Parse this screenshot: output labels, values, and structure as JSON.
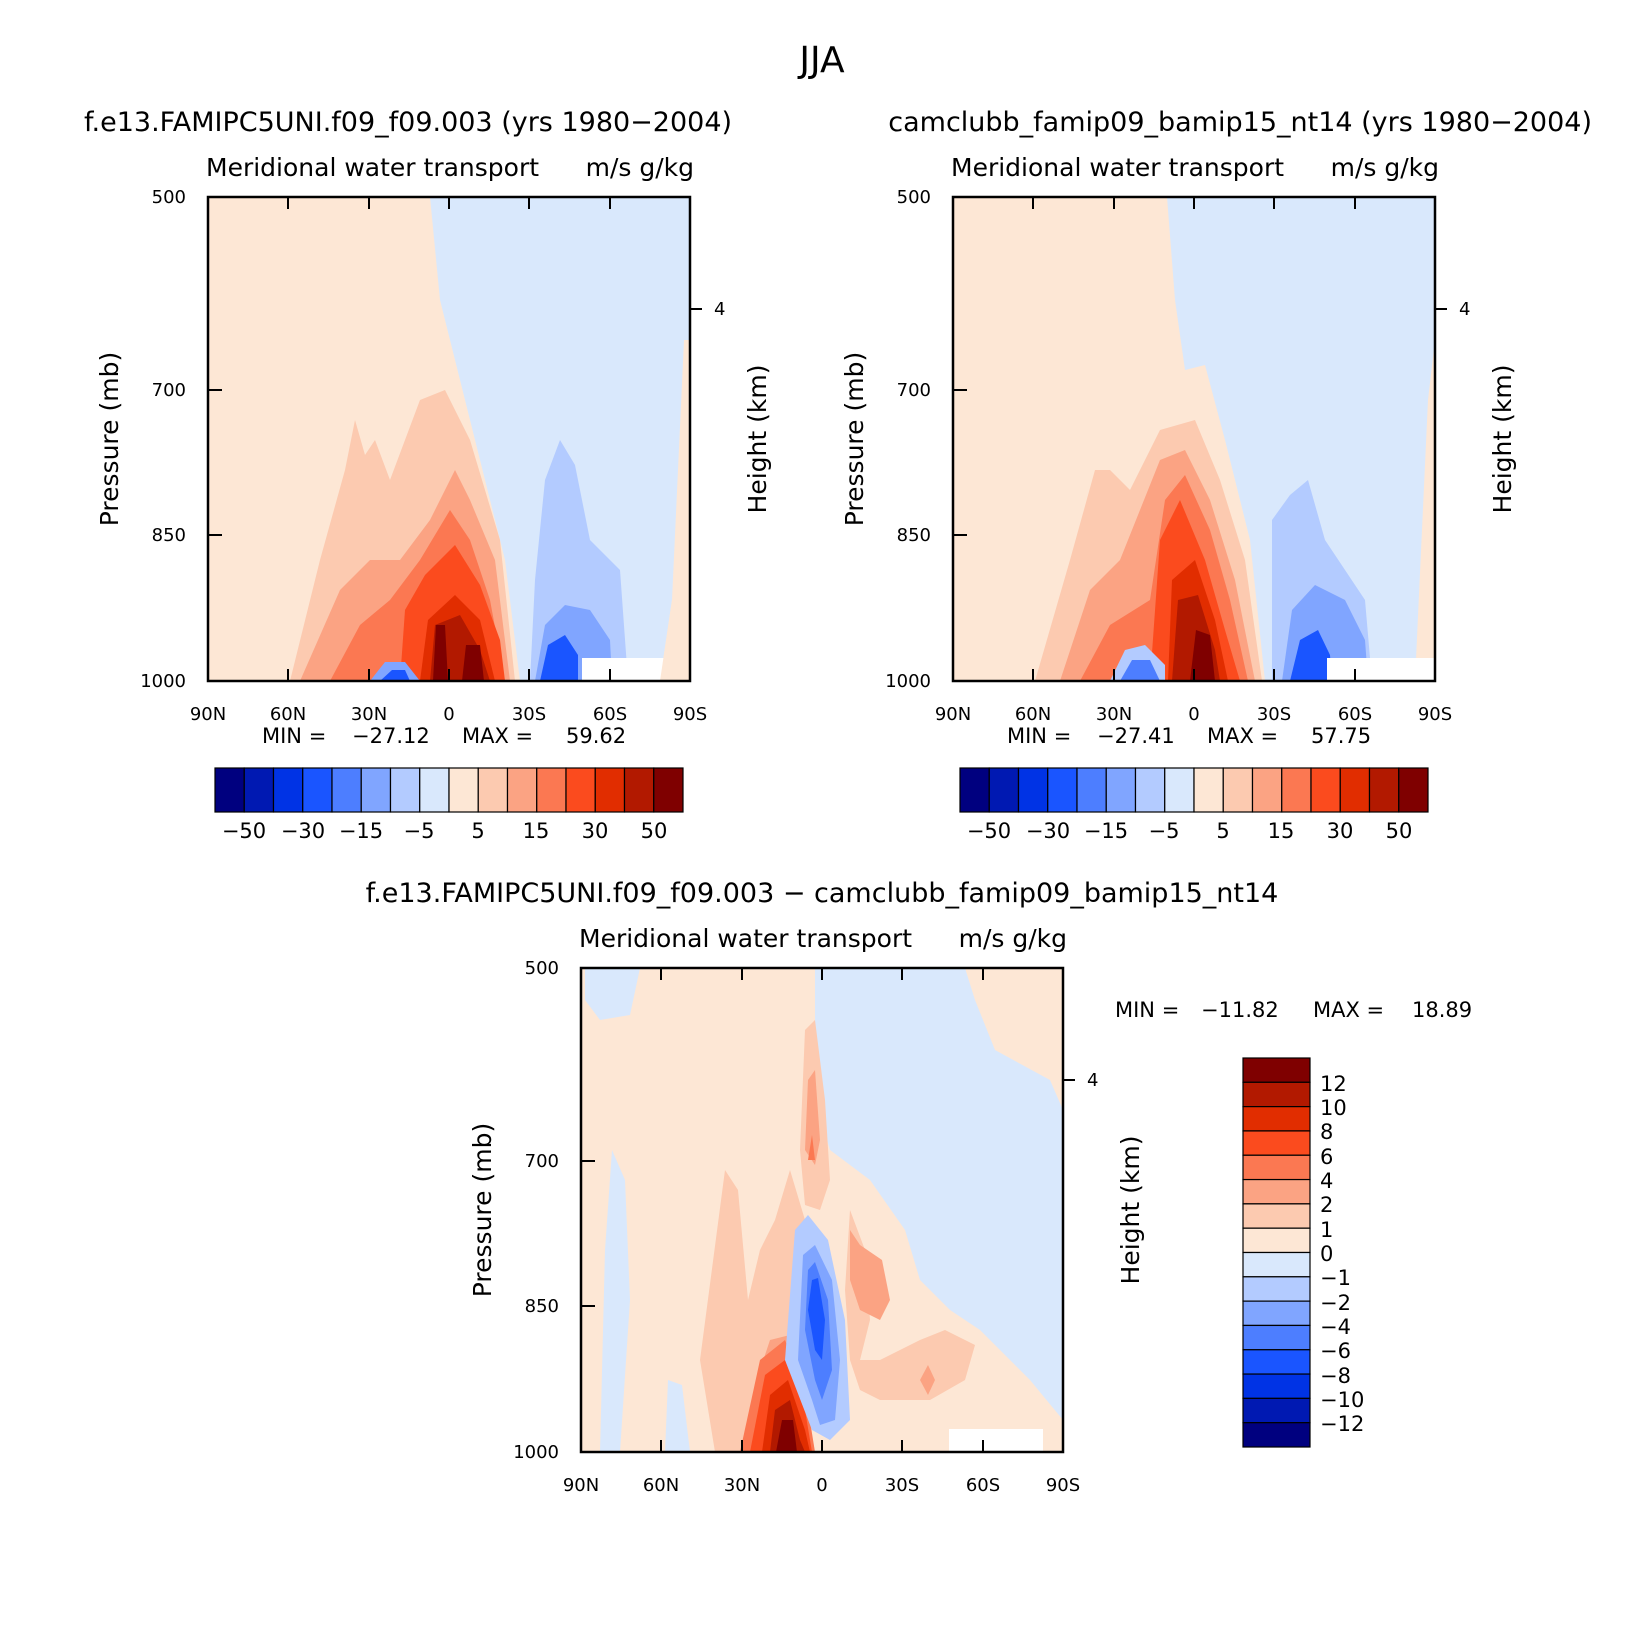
{
  "figure_title": "JJA",
  "colors": {
    "main_scale": [
      "#00007f",
      "#0019b2",
      "#0033e5",
      "#1a55ff",
      "#4d7eff",
      "#80a5ff",
      "#b3cbff",
      "#d9e8fc",
      "#fde7d5",
      "#fccab0",
      "#fba383",
      "#fb7852",
      "#fb4b1e",
      "#e12d00",
      "#b21900",
      "#7f0000"
    ],
    "diff_scale": [
      "#00007f",
      "#0019b2",
      "#0033e5",
      "#1a55ff",
      "#4d7eff",
      "#80a5ff",
      "#b3cbff",
      "#d9e8fc",
      "#fde7d5",
      "#fccab0",
      "#fba383",
      "#fb7852",
      "#fb4b1e",
      "#e12d00",
      "#b21900",
      "#7f0000"
    ]
  },
  "chart_data": [
    {
      "type": "heatmap",
      "title": "f.e13.FAMIPC5UNI.f09_f09.003 (yrs 1980−2004)",
      "subtitle_left": "Meridional water transport",
      "subtitle_right": "m/s g/kg",
      "xlabel": "",
      "ylabel": "Pressure (mb)",
      "ylabel_right": "Height (km)",
      "x_ticks": [
        "90N",
        "60N",
        "30N",
        "0",
        "30S",
        "60S",
        "90S"
      ],
      "y_ticks": [
        "500",
        "700",
        "850",
        "1000"
      ],
      "y_right_ticks": [
        "4"
      ],
      "stats": {
        "min_label": "MIN =",
        "min_value": "−27.12",
        "max_label": "MAX =",
        "max_value": "59.62"
      },
      "colorbar_labels": [
        "−50",
        "−30",
        "−15",
        "−5",
        "5",
        "15",
        "30",
        "50"
      ]
    },
    {
      "type": "heatmap",
      "title": "camclubb_famip09_bamip15_nt14 (yrs 1980−2004)",
      "subtitle_left": "Meridional water transport",
      "subtitle_right": "m/s g/kg",
      "xlabel": "",
      "ylabel": "Pressure (mb)",
      "ylabel_right": "Height (km)",
      "x_ticks": [
        "90N",
        "60N",
        "30N",
        "0",
        "30S",
        "60S",
        "90S"
      ],
      "y_ticks": [
        "500",
        "700",
        "850",
        "1000"
      ],
      "y_right_ticks": [
        "4"
      ],
      "stats": {
        "min_label": "MIN =",
        "min_value": "−27.41",
        "max_label": "MAX =",
        "max_value": "57.75"
      },
      "colorbar_labels": [
        "−50",
        "−30",
        "−15",
        "−5",
        "5",
        "15",
        "30",
        "50"
      ]
    },
    {
      "type": "heatmap",
      "title": "f.e13.FAMIPC5UNI.f09_f09.003 − camclubb_famip09_bamip15_nt14",
      "subtitle_left": "Meridional water transport",
      "subtitle_right": "m/s g/kg",
      "xlabel": "",
      "ylabel": "Pressure (mb)",
      "ylabel_right": "Height (km)",
      "x_ticks": [
        "90N",
        "60N",
        "30N",
        "0",
        "30S",
        "60S",
        "90S"
      ],
      "y_ticks": [
        "500",
        "700",
        "850",
        "1000"
      ],
      "y_right_ticks": [
        "4"
      ],
      "stats": {
        "min_label": "MIN =",
        "min_value": "−11.82",
        "max_label": "MAX =",
        "max_value": "18.89"
      },
      "colorbar_labels": [
        "12",
        "10",
        "8",
        "6",
        "4",
        "2",
        "1",
        "0",
        "−1",
        "−2",
        "−4",
        "−6",
        "−8",
        "−10",
        "−12"
      ]
    }
  ]
}
